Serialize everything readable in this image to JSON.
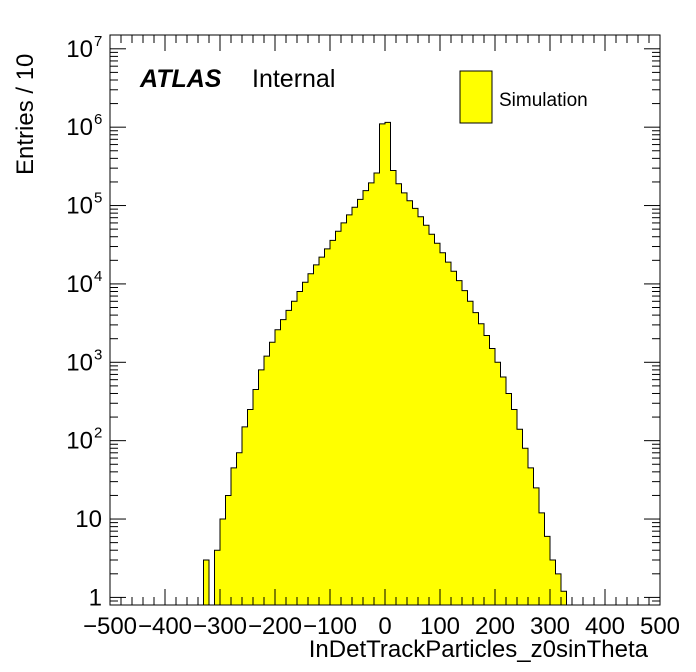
{
  "chart_data": {
    "type": "bar",
    "xlabel": "InDetTrackParticles_z0sinTheta",
    "ylabel": "Entries / 10",
    "atlas_label": "ATLAS",
    "atlas_sublabel": "Internal",
    "legend": {
      "label": "Simulation",
      "color": "#ffff00",
      "placement": "top-right"
    },
    "bar_color": "#ffff00",
    "edge_color": "#000000",
    "log_y": true,
    "grid": false,
    "xlim": [
      -500,
      500
    ],
    "ylim": [
      0.8,
      15000000
    ],
    "bin_width": 10,
    "x_ticks": [
      -500,
      -400,
      -300,
      -200,
      -100,
      0,
      100,
      200,
      300,
      400,
      500
    ],
    "y_ticks": [
      {
        "value": 1,
        "label": "1"
      },
      {
        "value": 10,
        "label": "10"
      },
      {
        "value": 100,
        "base": "10",
        "exp": "2"
      },
      {
        "value": 1000,
        "base": "10",
        "exp": "3"
      },
      {
        "value": 10000,
        "base": "10",
        "exp": "4"
      },
      {
        "value": 100000,
        "base": "10",
        "exp": "5"
      },
      {
        "value": 1000000,
        "base": "10",
        "exp": "6"
      },
      {
        "value": 10000000,
        "base": "10",
        "exp": "7"
      }
    ],
    "bins": [
      {
        "x": -330,
        "y": 3
      },
      {
        "x": -310,
        "y": 4
      },
      {
        "x": -300,
        "y": 10
      },
      {
        "x": -290,
        "y": 20
      },
      {
        "x": -280,
        "y": 45
      },
      {
        "x": -270,
        "y": 70
      },
      {
        "x": -260,
        "y": 150
      },
      {
        "x": -250,
        "y": 250
      },
      {
        "x": -240,
        "y": 450
      },
      {
        "x": -230,
        "y": 800
      },
      {
        "x": -220,
        "y": 1200
      },
      {
        "x": -210,
        "y": 1800
      },
      {
        "x": -200,
        "y": 2600
      },
      {
        "x": -190,
        "y": 3500
      },
      {
        "x": -180,
        "y": 4600
      },
      {
        "x": -170,
        "y": 6000
      },
      {
        "x": -160,
        "y": 8000
      },
      {
        "x": -150,
        "y": 10500
      },
      {
        "x": -140,
        "y": 13500
      },
      {
        "x": -130,
        "y": 17500
      },
      {
        "x": -120,
        "y": 22000
      },
      {
        "x": -110,
        "y": 28000
      },
      {
        "x": -100,
        "y": 36000
      },
      {
        "x": -90,
        "y": 47000
      },
      {
        "x": -80,
        "y": 60000
      },
      {
        "x": -70,
        "y": 76000
      },
      {
        "x": -60,
        "y": 95000
      },
      {
        "x": -50,
        "y": 120000
      },
      {
        "x": -40,
        "y": 155000
      },
      {
        "x": -30,
        "y": 195000
      },
      {
        "x": -20,
        "y": 260000
      },
      {
        "x": -10,
        "y": 1100000
      },
      {
        "x": 0,
        "y": 1150000
      },
      {
        "x": 10,
        "y": 280000
      },
      {
        "x": 20,
        "y": 190000
      },
      {
        "x": 30,
        "y": 145000
      },
      {
        "x": 40,
        "y": 115000
      },
      {
        "x": 50,
        "y": 92000
      },
      {
        "x": 60,
        "y": 72000
      },
      {
        "x": 70,
        "y": 56000
      },
      {
        "x": 80,
        "y": 43000
      },
      {
        "x": 90,
        "y": 33000
      },
      {
        "x": 100,
        "y": 25000
      },
      {
        "x": 110,
        "y": 19000
      },
      {
        "x": 120,
        "y": 14500
      },
      {
        "x": 130,
        "y": 11000
      },
      {
        "x": 140,
        "y": 8200
      },
      {
        "x": 150,
        "y": 6000
      },
      {
        "x": 160,
        "y": 4300
      },
      {
        "x": 170,
        "y": 3100
      },
      {
        "x": 180,
        "y": 2200
      },
      {
        "x": 190,
        "y": 1500
      },
      {
        "x": 200,
        "y": 1000
      },
      {
        "x": 210,
        "y": 650
      },
      {
        "x": 220,
        "y": 400
      },
      {
        "x": 230,
        "y": 250
      },
      {
        "x": 240,
        "y": 140
      },
      {
        "x": 250,
        "y": 80
      },
      {
        "x": 260,
        "y": 45
      },
      {
        "x": 270,
        "y": 25
      },
      {
        "x": 280,
        "y": 12
      },
      {
        "x": 290,
        "y": 6
      },
      {
        "x": 300,
        "y": 3
      },
      {
        "x": 310,
        "y": 2
      },
      {
        "x": 320,
        "y": 1.2
      }
    ]
  }
}
